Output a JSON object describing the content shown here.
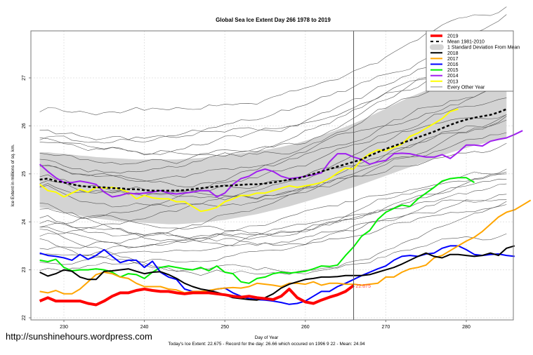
{
  "watermark": "http://sunshinehours.wordpress.com",
  "chart_data": {
    "type": "line",
    "title": "Global Sea Ice Extent Day 266 1978 to 2019",
    "xlabel": "Day of Year",
    "ylabel": "Ice Extent in millions of sq. km.",
    "subtitle": "Today's Ice Extent: 22.675  - Record for the day: 26.66 which occured on 1996 9 22  - Mean: 24.94",
    "xlim": [
      226,
      286
    ],
    "ylim": [
      22,
      27.9
    ],
    "xticks": [
      230,
      240,
      250,
      260,
      270,
      280
    ],
    "yticks": [
      22,
      23,
      24,
      25,
      26,
      27
    ],
    "grid": true,
    "current_day": 266,
    "today_label": "22.675",
    "legend_position": "top-right",
    "legend": [
      {
        "label": "2019",
        "color": "#ff0000",
        "style": "thick"
      },
      {
        "label": "Mean 1981-2010",
        "color": "#000000",
        "style": "dashed"
      },
      {
        "label": "1 Standard Deviation From Mean",
        "color": "#d3d3d3",
        "style": "band"
      },
      {
        "label": "2018",
        "color": "#000000",
        "style": "solid"
      },
      {
        "label": "2017",
        "color": "#ffa500",
        "style": "solid"
      },
      {
        "label": "2016",
        "color": "#0000ff",
        "style": "solid"
      },
      {
        "label": "2015",
        "color": "#00ee00",
        "style": "solid"
      },
      {
        "label": "2014",
        "color": "#a020f0",
        "style": "solid"
      },
      {
        "label": "2013",
        "color": "#ffff00",
        "style": "solid"
      },
      {
        "label": "Every Other Year",
        "color": "#888888",
        "style": "thin"
      }
    ],
    "x_start": 227,
    "mean": [
      24.88,
      24.9,
      24.85,
      24.82,
      24.78,
      24.75,
      24.73,
      24.72,
      24.72,
      24.7,
      24.7,
      24.68,
      24.68,
      24.66,
      24.65,
      24.65,
      24.65,
      24.65,
      24.66,
      24.68,
      24.7,
      24.72,
      24.74,
      24.75,
      24.76,
      24.77,
      24.78,
      24.78,
      24.8,
      24.82,
      24.85,
      24.88,
      24.9,
      24.95,
      25.0,
      25.05,
      25.1,
      25.15,
      25.2,
      25.25,
      25.3,
      25.38,
      25.45,
      25.52,
      25.58,
      25.64,
      25.7,
      25.76,
      25.82,
      25.88,
      25.95,
      26.02,
      26.08,
      26.13,
      26.17,
      26.2,
      26.23,
      26.28,
      26.35
    ],
    "band_upper": [
      25.45,
      25.45,
      25.43,
      25.42,
      25.4,
      25.38,
      25.37,
      25.35,
      25.34,
      25.33,
      25.32,
      25.31,
      25.3,
      25.3,
      25.3,
      25.3,
      25.3,
      25.3,
      25.31,
      25.32,
      25.33,
      25.35,
      25.37,
      25.39,
      25.41,
      25.43,
      25.45,
      25.48,
      25.5,
      25.53,
      25.56,
      25.6,
      25.64,
      25.69,
      25.74,
      25.8,
      25.86,
      25.92,
      25.98,
      26.05,
      26.12,
      26.2,
      26.28,
      26.36,
      26.44,
      26.52,
      26.6,
      26.67,
      26.74,
      26.8,
      26.86,
      26.91,
      26.96,
      27.0,
      27.03,
      27.06,
      27.08,
      27.1,
      27.12
    ],
    "band_lower": [
      24.3,
      24.28,
      24.25,
      24.2,
      24.17,
      24.13,
      24.1,
      24.07,
      24.05,
      24.03,
      24.01,
      24.0,
      23.99,
      23.98,
      23.97,
      23.96,
      23.95,
      23.95,
      23.96,
      23.97,
      23.99,
      24.0,
      24.02,
      24.04,
      24.07,
      24.1,
      24.13,
      24.16,
      24.2,
      24.24,
      24.28,
      24.32,
      24.37,
      24.42,
      24.47,
      24.52,
      24.57,
      24.62,
      24.67,
      24.72,
      24.78,
      24.84,
      24.9,
      24.96,
      25.02,
      25.08,
      25.14,
      25.2,
      25.26,
      25.32,
      25.38,
      25.44,
      25.49,
      25.54,
      25.59,
      25.63,
      25.67,
      25.7,
      25.73
    ],
    "series": [
      {
        "name": "2019",
        "color": "#ff0000",
        "width": 4,
        "values": [
          22.35,
          22.42,
          22.35,
          22.35,
          22.35,
          22.35,
          22.3,
          22.27,
          22.35,
          22.45,
          22.52,
          22.52,
          22.57,
          22.6,
          22.57,
          22.55,
          22.55,
          22.52,
          22.5,
          22.52,
          22.52,
          22.52,
          22.5,
          22.48,
          22.45,
          22.43,
          22.45,
          22.42,
          22.4,
          22.38,
          22.45,
          22.6,
          22.42,
          22.33,
          22.3,
          22.37,
          22.43,
          22.48,
          22.55,
          22.675
        ]
      },
      {
        "name": "2018",
        "color": "#000000",
        "width": 2,
        "values": [
          22.95,
          22.87,
          22.92,
          23.0,
          22.97,
          22.85,
          22.8,
          22.8,
          22.97,
          22.98,
          23.0,
          23.02,
          22.97,
          22.92,
          22.95,
          22.96,
          22.9,
          22.82,
          22.72,
          22.65,
          22.6,
          22.57,
          22.53,
          22.48,
          22.42,
          22.4,
          22.38,
          22.37,
          22.42,
          22.5,
          22.62,
          22.7,
          22.75,
          22.8,
          22.82,
          22.85,
          22.85,
          22.86,
          22.88,
          22.88,
          22.88,
          22.9,
          22.95,
          23.0,
          23.05,
          23.12,
          23.2,
          23.28,
          23.35,
          23.28,
          23.25,
          23.32,
          23.32,
          23.3,
          23.28,
          23.3,
          23.35,
          23.3,
          23.45,
          23.5
        ]
      },
      {
        "name": "2017",
        "color": "#ffa500",
        "width": 2,
        "values": [
          22.55,
          22.52,
          22.57,
          22.5,
          22.5,
          22.6,
          22.75,
          22.9,
          22.95,
          22.92,
          22.85,
          22.82,
          22.72,
          22.65,
          22.65,
          22.65,
          22.6,
          22.58,
          22.52,
          22.55,
          22.55,
          22.57,
          22.6,
          22.62,
          22.63,
          22.62,
          22.65,
          22.72,
          22.7,
          22.68,
          22.65,
          22.72,
          22.72,
          22.7,
          22.75,
          22.68,
          22.72,
          22.72,
          22.7,
          22.7,
          22.68,
          22.7,
          22.72,
          22.85,
          22.85,
          22.95,
          23.02,
          23.05,
          23.1,
          23.25,
          23.3,
          23.4,
          23.5,
          23.6,
          23.68,
          23.8,
          23.95,
          24.1,
          24.2,
          24.25,
          24.35,
          24.45
        ]
      },
      {
        "name": "2016",
        "color": "#0000ff",
        "width": 2,
        "values": [
          23.35,
          23.3,
          23.28,
          23.25,
          23.2,
          23.32,
          23.22,
          23.3,
          23.42,
          23.28,
          23.15,
          23.2,
          23.2,
          23.05,
          23.18,
          22.95,
          22.85,
          22.8,
          22.6,
          22.55,
          22.55,
          22.55,
          22.6,
          22.62,
          22.52,
          22.45,
          22.4,
          22.38,
          22.37,
          22.35,
          22.32,
          22.28,
          22.3,
          22.35,
          22.45,
          22.55,
          22.55,
          22.65,
          22.72,
          22.8,
          22.88,
          22.95,
          23.02,
          23.08,
          23.2,
          23.28,
          23.3,
          23.28,
          23.33,
          23.35,
          23.45,
          23.5,
          23.5,
          23.42,
          23.32,
          23.3,
          23.32,
          23.33,
          23.3,
          23.28
        ]
      },
      {
        "name": "2015",
        "color": "#00ee00",
        "width": 2,
        "values": [
          23.2,
          23.17,
          23.22,
          23.05,
          22.98,
          23.0,
          23.0,
          23.02,
          23.0,
          22.95,
          22.85,
          22.92,
          22.9,
          22.82,
          22.95,
          23.05,
          23.08,
          23.05,
          23.02,
          23.0,
          23.05,
          22.98,
          23.08,
          22.95,
          22.92,
          22.75,
          22.72,
          22.82,
          22.85,
          22.92,
          22.95,
          22.93,
          22.95,
          22.97,
          23.02,
          23.08,
          23.07,
          23.1,
          23.3,
          23.48,
          23.7,
          23.82,
          24.05,
          24.2,
          24.28,
          24.35,
          24.32,
          24.48,
          24.6,
          24.72,
          24.85,
          24.9,
          24.92,
          24.92,
          24.82
        ]
      },
      {
        "name": "2014",
        "color": "#a020f0",
        "width": 2,
        "values": [
          25.2,
          25.05,
          24.92,
          24.82,
          24.82,
          24.85,
          24.82,
          24.78,
          24.62,
          24.52,
          24.55,
          24.6,
          24.58,
          24.6,
          24.62,
          24.65,
          24.6,
          24.58,
          24.6,
          24.62,
          24.65,
          24.65,
          24.52,
          24.6,
          24.78,
          24.9,
          24.95,
          25.05,
          25.1,
          25.05,
          24.95,
          24.9,
          24.92,
          24.95,
          24.98,
          25.02,
          25.25,
          25.42,
          25.42,
          25.35,
          25.3,
          25.2,
          25.25,
          25.28,
          25.42,
          25.43,
          25.42,
          25.38,
          25.35,
          25.35,
          25.4,
          25.32,
          25.45,
          25.6,
          25.6,
          25.58,
          25.68,
          25.72,
          25.75,
          25.82,
          25.9
        ]
      },
      {
        "name": "2013",
        "color": "#ffff00",
        "width": 2,
        "values": [
          24.78,
          24.65,
          24.62,
          24.52,
          24.6,
          24.68,
          24.62,
          24.72,
          24.7,
          24.72,
          24.68,
          24.62,
          24.48,
          24.55,
          24.5,
          24.48,
          24.48,
          24.42,
          24.42,
          24.32,
          24.22,
          24.25,
          24.3,
          24.42,
          24.48,
          24.55,
          24.55,
          24.6,
          24.6,
          24.65,
          24.7,
          24.75,
          24.72,
          24.75,
          24.78,
          24.82,
          24.9,
          25.02,
          25.12,
          25.1,
          25.3,
          25.42,
          25.5,
          25.48,
          25.55,
          25.62,
          25.78,
          25.85,
          25.95,
          26.05,
          26.15,
          26.3,
          26.35
        ]
      }
    ]
  }
}
